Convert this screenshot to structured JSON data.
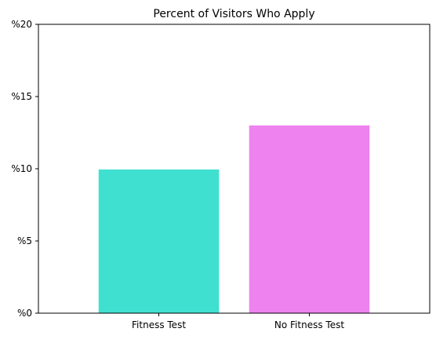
{
  "chart_data": {
    "type": "bar",
    "title": "Percent of Visitors Who Apply",
    "xlabel": "",
    "ylabel": "",
    "categories": [
      "Fitness Test",
      "No Fitness Test"
    ],
    "values": [
      9.95,
      13.0
    ],
    "colors": [
      "#40e0d0",
      "#ee82ee"
    ],
    "ylim": [
      0,
      20
    ],
    "yticks": [
      0,
      5,
      10,
      15,
      20
    ],
    "ytick_labels": [
      "%0",
      "%5",
      "%10",
      "%15",
      "%20"
    ],
    "grid": false,
    "legend": "none"
  }
}
